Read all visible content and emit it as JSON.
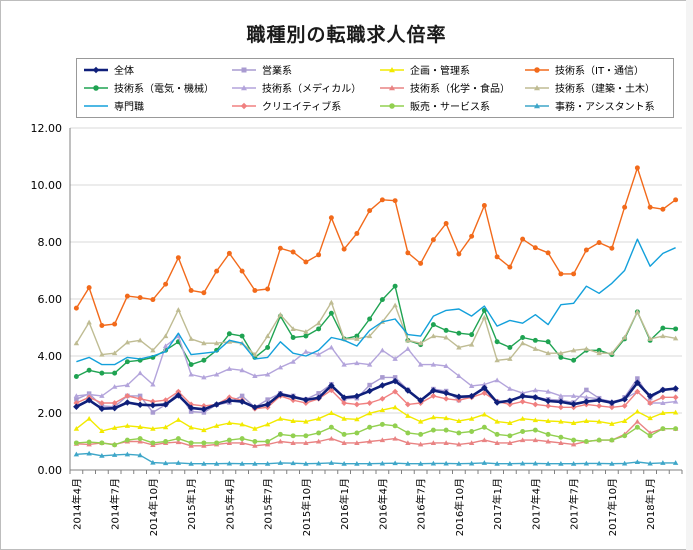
{
  "chart_data": {
    "type": "line",
    "title": "職種別の転職求人倍率",
    "ylim": [
      0,
      12
    ],
    "yticks": [
      "0.00",
      "2.00",
      "4.00",
      "6.00",
      "8.00",
      "10.00",
      "12.00"
    ],
    "x": [
      "2014年4月",
      "2014年5月",
      "2014年6月",
      "2014年7月",
      "2014年8月",
      "2014年9月",
      "2014年10月",
      "2014年11月",
      "2014年12月",
      "2015年1月",
      "2015年2月",
      "2015年3月",
      "2015年4月",
      "2015年5月",
      "2015年6月",
      "2015年7月",
      "2015年8月",
      "2015年9月",
      "2015年10月",
      "2015年11月",
      "2015年12月",
      "2016年1月",
      "2016年2月",
      "2016年3月",
      "2016年4月",
      "2016年5月",
      "2016年6月",
      "2016年7月",
      "2016年8月",
      "2016年9月",
      "2016年10月",
      "2016年11月",
      "2016年12月",
      "2017年1月",
      "2017年2月",
      "2017年3月",
      "2017年4月",
      "2017年5月",
      "2017年6月",
      "2017年7月",
      "2017年8月",
      "2017年9月",
      "2017年10月",
      "2017年11月",
      "2017年12月",
      "2018年1月",
      "2018年2月",
      "2018年3月"
    ],
    "xticks_shown": [
      "2014年4月",
      "2014年7月",
      "2014年10月",
      "2015年1月",
      "2015年4月",
      "2015年7月",
      "2015年10月",
      "2016年1月",
      "2016年4月",
      "2016年7月",
      "2016年10月",
      "2017年1月",
      "2017年4月",
      "2017年7月",
      "2017年10月",
      "2018年1月"
    ],
    "series": [
      {
        "name": "全体",
        "color": "#0f1f7a",
        "marker": "diamond",
        "width": 2.6,
        "values": [
          2.22,
          2.45,
          2.15,
          2.17,
          2.37,
          2.29,
          2.27,
          2.3,
          2.62,
          2.18,
          2.13,
          2.3,
          2.44,
          2.4,
          2.2,
          2.3,
          2.66,
          2.56,
          2.46,
          2.53,
          2.96,
          2.54,
          2.59,
          2.77,
          2.97,
          3.12,
          2.79,
          2.44,
          2.79,
          2.7,
          2.57,
          2.59,
          2.88,
          2.37,
          2.43,
          2.59,
          2.55,
          2.42,
          2.39,
          2.31,
          2.4,
          2.45,
          2.36,
          2.48,
          3.06,
          2.59,
          2.81,
          2.86
        ]
      },
      {
        "name": "営業系",
        "color": "#a99bd1",
        "marker": "square",
        "width": 1.4,
        "values": [
          2.48,
          2.68,
          2.25,
          2.22,
          2.6,
          2.6,
          2.02,
          2.29,
          2.71,
          2.05,
          2.02,
          2.29,
          2.37,
          2.6,
          2.2,
          2.47,
          2.69,
          2.6,
          2.48,
          2.69,
          3.01,
          2.5,
          2.52,
          2.98,
          3.25,
          3.25,
          2.81,
          2.45,
          2.84,
          2.77,
          2.45,
          2.58,
          2.86,
          2.4,
          2.43,
          2.62,
          2.55,
          2.48,
          2.45,
          2.37,
          2.81,
          2.52,
          2.31,
          2.55,
          3.21,
          2.52,
          2.81,
          2.83
        ]
      },
      {
        "name": "企画・管理系",
        "color": "#f2ea00",
        "marker": "triangle",
        "width": 1.4,
        "values": [
          1.45,
          1.8,
          1.37,
          1.48,
          1.55,
          1.51,
          1.45,
          1.5,
          1.76,
          1.49,
          1.4,
          1.55,
          1.65,
          1.6,
          1.45,
          1.6,
          1.8,
          1.72,
          1.7,
          1.8,
          2.0,
          1.8,
          1.78,
          1.99,
          2.1,
          2.2,
          1.9,
          1.7,
          1.85,
          1.82,
          1.72,
          1.8,
          1.95,
          1.7,
          1.65,
          1.8,
          1.75,
          1.72,
          1.7,
          1.65,
          1.72,
          1.7,
          1.62,
          1.72,
          2.05,
          1.82,
          2.0,
          2.02
        ]
      },
      {
        "name": "技術系（IT・通信）",
        "color": "#f26a1b",
        "marker": "circle",
        "width": 1.4,
        "values": [
          5.68,
          6.4,
          5.07,
          5.12,
          6.1,
          6.05,
          5.98,
          6.52,
          7.45,
          6.3,
          6.22,
          6.98,
          7.6,
          6.98,
          6.3,
          6.35,
          7.78,
          7.65,
          7.3,
          7.55,
          8.85,
          7.75,
          8.3,
          9.1,
          9.48,
          9.45,
          7.62,
          7.25,
          8.08,
          8.65,
          7.58,
          8.2,
          9.28,
          7.48,
          7.12,
          8.1,
          7.8,
          7.62,
          6.88,
          6.88,
          7.72,
          7.98,
          7.78,
          9.22,
          10.6,
          9.22,
          9.15,
          9.48
        ]
      },
      {
        "name": "技術系（電気・機械）",
        "color": "#1fa352",
        "marker": "circle",
        "width": 1.4,
        "values": [
          3.28,
          3.5,
          3.4,
          3.4,
          3.8,
          3.85,
          3.95,
          4.2,
          4.5,
          3.7,
          3.85,
          4.2,
          4.78,
          4.7,
          3.95,
          4.3,
          5.4,
          4.65,
          4.7,
          4.95,
          5.5,
          4.6,
          4.7,
          5.3,
          5.98,
          6.45,
          4.55,
          4.4,
          5.1,
          4.9,
          4.8,
          4.75,
          5.6,
          4.5,
          4.3,
          4.65,
          4.55,
          4.5,
          3.95,
          3.85,
          4.2,
          4.2,
          4.05,
          4.6,
          5.55,
          4.55,
          4.98,
          4.95
        ]
      },
      {
        "name": "技術系（メディカル）",
        "color": "#b3a4db",
        "marker": "triangle",
        "width": 1.4,
        "values": [
          2.6,
          2.65,
          2.6,
          2.92,
          2.98,
          3.4,
          3.0,
          4.35,
          4.7,
          3.35,
          3.25,
          3.35,
          3.55,
          3.5,
          3.3,
          3.35,
          3.6,
          3.8,
          4.15,
          4.05,
          4.3,
          3.7,
          3.75,
          3.7,
          4.2,
          3.9,
          4.25,
          3.7,
          3.7,
          3.65,
          3.3,
          2.95,
          3.0,
          3.15,
          2.85,
          2.7,
          2.8,
          2.75,
          2.6,
          2.6,
          2.55,
          2.5,
          2.4,
          2.5,
          2.75,
          2.35,
          2.35,
          2.4
        ]
      },
      {
        "name": "技術系（化学・食品）",
        "color": "#e98383",
        "marker": "triangle",
        "width": 1.4,
        "values": [
          0.92,
          0.9,
          0.95,
          0.9,
          1.0,
          1.0,
          0.88,
          0.95,
          0.98,
          0.85,
          0.85,
          0.9,
          0.95,
          0.95,
          0.85,
          0.9,
          1.0,
          0.95,
          0.95,
          1.0,
          1.1,
          0.95,
          0.95,
          1.0,
          1.05,
          1.1,
          0.95,
          0.9,
          0.95,
          0.95,
          0.9,
          0.95,
          1.05,
          0.95,
          0.95,
          1.05,
          1.05,
          1.0,
          0.95,
          0.9,
          1.0,
          1.05,
          1.05,
          1.25,
          1.7,
          1.3,
          1.45,
          1.45
        ]
      },
      {
        "name": "技術系（建築・土木）",
        "color": "#bfbc93",
        "marker": "triangle",
        "width": 1.4,
        "values": [
          4.45,
          5.18,
          4.05,
          4.1,
          4.48,
          4.55,
          4.2,
          4.7,
          5.62,
          4.6,
          4.45,
          4.45,
          4.5,
          4.45,
          4.05,
          4.7,
          5.45,
          4.95,
          4.85,
          5.15,
          5.88,
          4.6,
          4.6,
          4.7,
          5.2,
          5.78,
          4.55,
          4.45,
          4.7,
          4.65,
          4.3,
          4.4,
          5.35,
          3.85,
          3.9,
          4.45,
          4.25,
          4.1,
          4.1,
          4.2,
          4.25,
          4.1,
          4.1,
          4.65,
          5.55,
          4.6,
          4.7,
          4.62
        ]
      },
      {
        "name": "専門職",
        "color": "#13a0db",
        "marker": "none",
        "width": 1.4,
        "values": [
          3.8,
          3.95,
          3.7,
          3.7,
          3.95,
          3.9,
          4.0,
          4.15,
          4.8,
          4.05,
          4.1,
          4.15,
          4.55,
          4.45,
          3.9,
          3.95,
          4.5,
          4.1,
          4.0,
          4.2,
          4.65,
          4.55,
          4.35,
          4.9,
          5.2,
          5.3,
          4.75,
          4.7,
          5.4,
          5.6,
          5.65,
          5.4,
          5.75,
          5.05,
          5.25,
          5.15,
          5.45,
          5.1,
          5.8,
          5.85,
          6.45,
          6.2,
          6.55,
          7.0,
          8.1,
          7.15,
          7.6,
          7.8
        ]
      },
      {
        "name": "クリエイティブ系",
        "color": "#f08080",
        "marker": "diamond",
        "width": 1.4,
        "values": [
          2.35,
          2.55,
          2.35,
          2.35,
          2.6,
          2.5,
          2.4,
          2.45,
          2.75,
          2.3,
          2.25,
          2.3,
          2.55,
          2.45,
          2.15,
          2.2,
          2.6,
          2.45,
          2.35,
          2.5,
          2.8,
          2.35,
          2.3,
          2.35,
          2.5,
          2.75,
          2.3,
          2.35,
          2.6,
          2.5,
          2.45,
          2.55,
          2.7,
          2.4,
          2.3,
          2.4,
          2.3,
          2.25,
          2.2,
          2.2,
          2.3,
          2.25,
          2.2,
          2.25,
          2.75,
          2.35,
          2.55,
          2.55
        ]
      },
      {
        "name": "販売・サービス系",
        "color": "#92d050",
        "marker": "circle",
        "width": 1.4,
        "values": [
          0.95,
          0.98,
          0.95,
          0.88,
          1.05,
          1.1,
          0.95,
          1.0,
          1.1,
          0.95,
          0.95,
          0.95,
          1.05,
          1.1,
          1.0,
          1.0,
          1.25,
          1.2,
          1.2,
          1.3,
          1.5,
          1.25,
          1.3,
          1.5,
          1.6,
          1.55,
          1.3,
          1.25,
          1.4,
          1.4,
          1.3,
          1.35,
          1.5,
          1.25,
          1.2,
          1.35,
          1.4,
          1.25,
          1.15,
          1.05,
          1.0,
          1.05,
          1.05,
          1.2,
          1.5,
          1.2,
          1.45,
          1.45
        ]
      },
      {
        "name": "事務・アシスタント系",
        "color": "#3ea6c8",
        "marker": "triangle",
        "width": 1.4,
        "values": [
          0.55,
          0.58,
          0.5,
          0.53,
          0.55,
          0.52,
          0.26,
          0.24,
          0.25,
          0.22,
          0.22,
          0.22,
          0.23,
          0.22,
          0.22,
          0.22,
          0.25,
          0.24,
          0.22,
          0.23,
          0.25,
          0.22,
          0.22,
          0.22,
          0.23,
          0.24,
          0.22,
          0.22,
          0.23,
          0.23,
          0.22,
          0.23,
          0.25,
          0.22,
          0.22,
          0.23,
          0.23,
          0.22,
          0.22,
          0.22,
          0.23,
          0.23,
          0.22,
          0.23,
          0.28,
          0.23,
          0.25,
          0.25
        ]
      }
    ]
  }
}
